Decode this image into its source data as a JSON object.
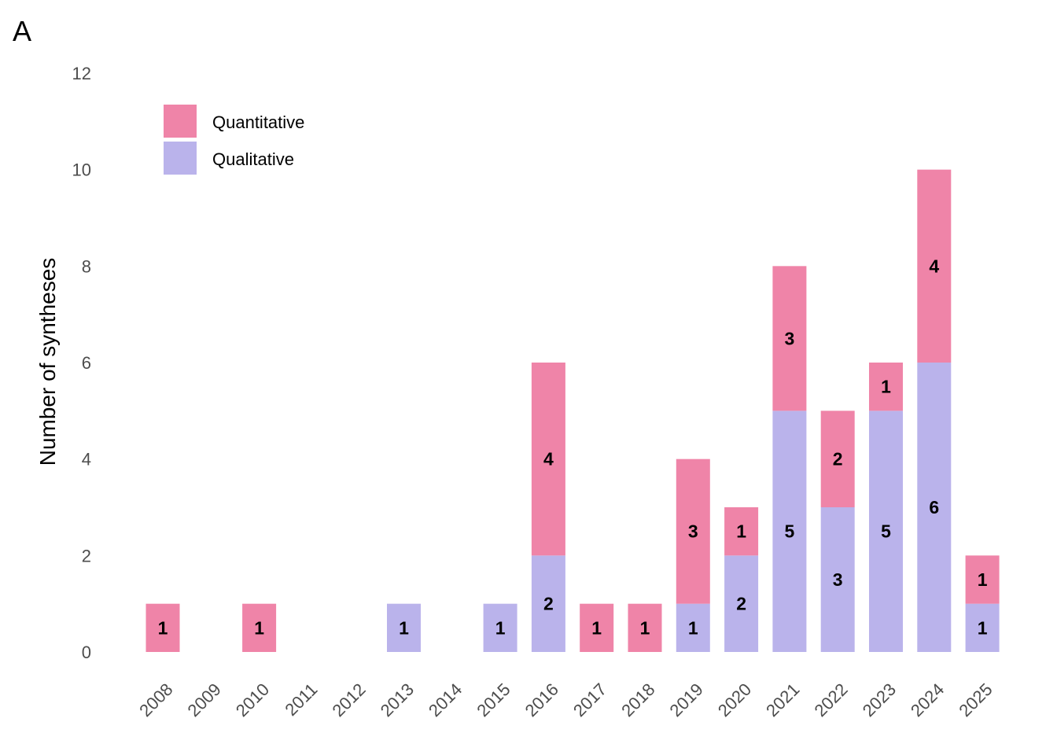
{
  "panel_label": "A",
  "colors": {
    "Quantitative": "#ef84a8",
    "Qualitative": "#bab3eb"
  },
  "chart_data": {
    "type": "bar",
    "stacked": true,
    "categories": [
      "2008",
      "2009",
      "2010",
      "2011",
      "2012",
      "2013",
      "2014",
      "2015",
      "2016",
      "2017",
      "2018",
      "2019",
      "2020",
      "2021",
      "2022",
      "2023",
      "2024",
      "2025"
    ],
    "series": [
      {
        "name": "Qualitative",
        "values": [
          0,
          0,
          0,
          0,
          0,
          1,
          0,
          1,
          2,
          0,
          0,
          1,
          2,
          5,
          3,
          5,
          6,
          1
        ]
      },
      {
        "name": "Quantitative",
        "values": [
          1,
          0,
          1,
          0,
          0,
          0,
          0,
          0,
          4,
          1,
          1,
          3,
          1,
          3,
          2,
          1,
          4,
          1
        ]
      }
    ],
    "legend_order": [
      "Quantitative",
      "Qualitative"
    ],
    "title": "",
    "xlabel": "",
    "ylabel": "Number of syntheses",
    "ylim": [
      0,
      12
    ],
    "yticks": [
      0,
      2,
      4,
      6,
      8,
      10,
      12
    ],
    "grid": false,
    "legend_position": "top-left",
    "data_labels": true
  }
}
